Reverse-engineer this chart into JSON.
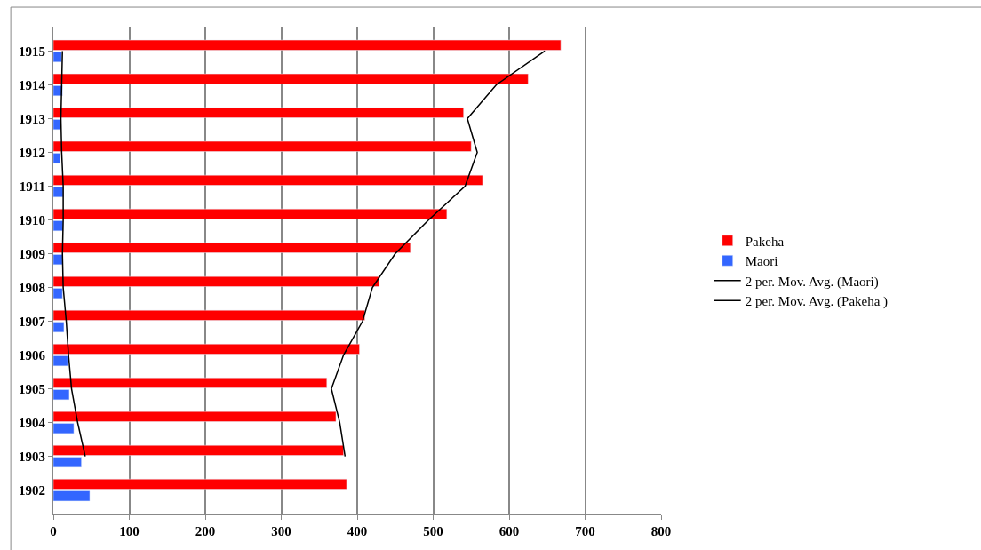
{
  "chart_data": {
    "type": "bar",
    "orientation": "horizontal",
    "categories": [
      "1915",
      "1914",
      "1913",
      "1912",
      "1911",
      "1910",
      "1909",
      "1908",
      "1907",
      "1906",
      "1905",
      "1904",
      "1903",
      "1902"
    ],
    "series": [
      {
        "name": "Pakeha",
        "color": "#ff0000",
        "values": [
          668,
          625,
          540,
          550,
          565,
          518,
          470,
          429,
          410,
          403,
          360,
          372,
          382,
          386
        ]
      },
      {
        "name": "Maori",
        "color": "#3366ff",
        "values": [
          11,
          12,
          10,
          9,
          13,
          13,
          12,
          12,
          14,
          19,
          21,
          27,
          37,
          48
        ]
      },
      {
        "name": "2 per. Mov. Avg. (Maori)",
        "type": "line",
        "color": "#000000",
        "values": [
          12,
          11,
          10,
          11,
          13,
          13,
          12,
          13,
          17,
          20,
          24,
          32,
          42,
          null
        ]
      },
      {
        "name": "2 per. Mov. Avg. (Pakeha )",
        "type": "line",
        "color": "#000000",
        "values": [
          647,
          583,
          545,
          558,
          542,
          494,
          450,
          420,
          407,
          382,
          366,
          377,
          384,
          null
        ]
      }
    ],
    "xlim": [
      0,
      800
    ],
    "xticks": [
      0,
      100,
      200,
      300,
      400,
      500,
      600,
      700,
      800
    ],
    "grid": "x",
    "legend": "right",
    "marker": "none",
    "line_style": "solid"
  }
}
